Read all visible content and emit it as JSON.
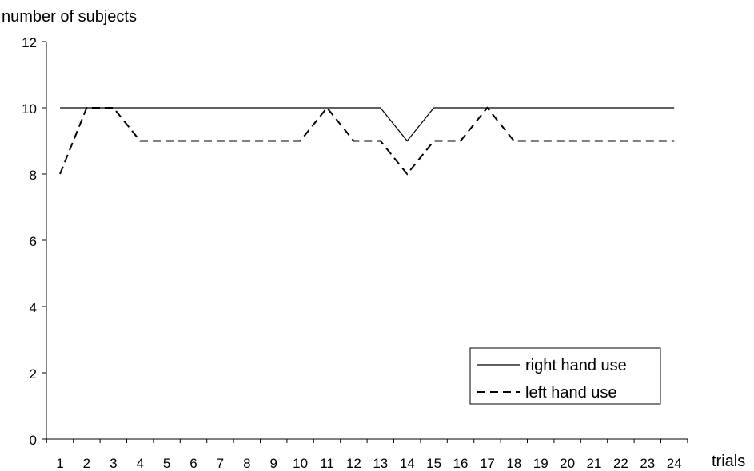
{
  "chart_data": {
    "type": "line",
    "title": "",
    "ylabel": "number of subjects",
    "xlabel": "trials",
    "categories": [
      "1",
      "2",
      "3",
      "4",
      "5",
      "6",
      "7",
      "8",
      "9",
      "10",
      "11",
      "12",
      "13",
      "14",
      "15",
      "16",
      "17",
      "18",
      "19",
      "20",
      "21",
      "22",
      "23",
      "24"
    ],
    "ylim": [
      0,
      12
    ],
    "yticks": [
      "0",
      "2",
      "4",
      "6",
      "8",
      "10",
      "12"
    ],
    "grid": false,
    "legend_position": "bottom-right",
    "series": [
      {
        "name": "right hand use",
        "style": "solid",
        "color": "#000000",
        "values": [
          10,
          10,
          10,
          10,
          10,
          10,
          10,
          10,
          10,
          10,
          10,
          10,
          10,
          9,
          10,
          10,
          10,
          10,
          10,
          10,
          10,
          10,
          10,
          10
        ]
      },
      {
        "name": "left hand use",
        "style": "dashed",
        "color": "#000000",
        "values": [
          8,
          10,
          10,
          9,
          9,
          9,
          9,
          9,
          9,
          9,
          10,
          9,
          9,
          8,
          9,
          9,
          10,
          9,
          9,
          9,
          9,
          9,
          9,
          9
        ]
      }
    ]
  }
}
